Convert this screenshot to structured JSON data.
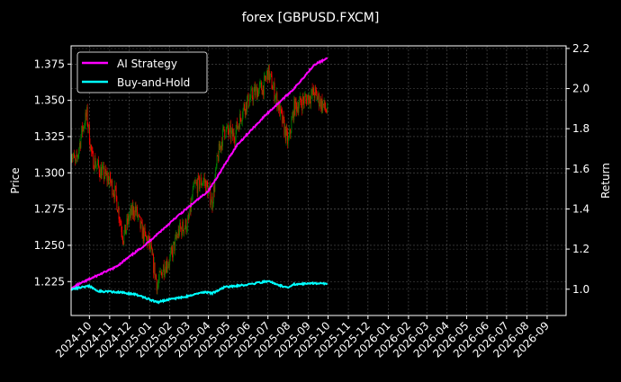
{
  "chart_data": {
    "type": "line",
    "title": "forex [GBPUSD.FXCM]",
    "xlabel": "",
    "ylabel_left": "Price",
    "ylabel_right": "Return",
    "ylim_left": [
      1.2016,
      1.3876
    ],
    "ylim_right": [
      0.869,
      2.213
    ],
    "xlim": [
      "2024-09-03",
      "2026-09-30"
    ],
    "grid": true,
    "legend_placement": "top-left",
    "left_ticks": [
      "1.225",
      "1.250",
      "1.275",
      "1.300",
      "1.325",
      "1.350",
      "1.375"
    ],
    "right_ticks": [
      "1.0",
      "1.2",
      "1.4",
      "1.6",
      "1.8",
      "2.0",
      "2.2"
    ],
    "x_ticks": [
      "2024-10",
      "2024-11",
      "2024-12",
      "2025-01",
      "2025-02",
      "2025-03",
      "2025-04",
      "2025-05",
      "2025-06",
      "2025-07",
      "2025-08",
      "2025-09",
      "2025-10",
      "2025-11",
      "2025-12",
      "2026-01",
      "2026-02",
      "2026-03",
      "2026-04",
      "2026-05",
      "2026-06",
      "2026-07",
      "2026-08",
      "2026-09"
    ],
    "price_series": {
      "name": "GBPUSD close (candles)",
      "up_color": "#008000",
      "down_color": "#ff0000",
      "points": [
        [
          "2024-09-03",
          1.315
        ],
        [
          "2024-09-10",
          1.305
        ],
        [
          "2024-09-20",
          1.33
        ],
        [
          "2024-09-27",
          1.34
        ],
        [
          "2024-10-05",
          1.31
        ],
        [
          "2024-10-20",
          1.3
        ],
        [
          "2024-11-01",
          1.295
        ],
        [
          "2024-11-10",
          1.285
        ],
        [
          "2024-11-22",
          1.255
        ],
        [
          "2024-12-01",
          1.27
        ],
        [
          "2024-12-10",
          1.275
        ],
        [
          "2024-12-20",
          1.26
        ],
        [
          "2025-01-01",
          1.25
        ],
        [
          "2025-01-13",
          1.222
        ],
        [
          "2025-01-22",
          1.235
        ],
        [
          "2025-02-01",
          1.24
        ],
        [
          "2025-02-15",
          1.26
        ],
        [
          "2025-03-01",
          1.265
        ],
        [
          "2025-03-10",
          1.29
        ],
        [
          "2025-03-25",
          1.295
        ],
        [
          "2025-04-07",
          1.28
        ],
        [
          "2025-04-15",
          1.31
        ],
        [
          "2025-04-25",
          1.33
        ],
        [
          "2025-05-10",
          1.325
        ],
        [
          "2025-05-25",
          1.345
        ],
        [
          "2025-06-10",
          1.355
        ],
        [
          "2025-06-25",
          1.36
        ],
        [
          "2025-07-01",
          1.37
        ],
        [
          "2025-07-15",
          1.35
        ],
        [
          "2025-08-01",
          1.32
        ],
        [
          "2025-08-10",
          1.345
        ],
        [
          "2025-08-25",
          1.35
        ],
        [
          "2025-09-10",
          1.355
        ],
        [
          "2025-09-30",
          1.342
        ]
      ]
    },
    "series": [
      {
        "name": "AI Strategy",
        "color": "#ff00ff",
        "axis": "right",
        "points": [
          [
            "2024-09-03",
            1.0
          ],
          [
            "2024-09-10",
            1.017
          ],
          [
            "2024-10-01",
            1.05
          ],
          [
            "2024-11-10",
            1.11
          ],
          [
            "2024-12-25",
            1.22
          ],
          [
            "2025-02-15",
            1.37
          ],
          [
            "2025-04-01",
            1.49
          ],
          [
            "2025-05-15",
            1.72
          ],
          [
            "2025-06-28",
            1.87
          ],
          [
            "2025-08-10",
            2.0
          ],
          [
            "2025-09-10",
            2.12
          ],
          [
            "2025-09-30",
            2.15
          ]
        ]
      },
      {
        "name": "Buy-and-Hold",
        "color": "#00ffff",
        "axis": "right",
        "points": [
          [
            "2024-09-03",
            1.0
          ],
          [
            "2024-09-20",
            1.01
          ],
          [
            "2024-10-01",
            1.015
          ],
          [
            "2024-10-15",
            0.99
          ],
          [
            "2024-11-15",
            0.985
          ],
          [
            "2024-12-10",
            0.975
          ],
          [
            "2025-01-13",
            0.935
          ],
          [
            "2025-02-01",
            0.95
          ],
          [
            "2025-03-01",
            0.965
          ],
          [
            "2025-03-25",
            0.985
          ],
          [
            "2025-04-07",
            0.98
          ],
          [
            "2025-04-25",
            1.01
          ],
          [
            "2025-05-25",
            1.02
          ],
          [
            "2025-07-01",
            1.04
          ],
          [
            "2025-07-15",
            1.025
          ],
          [
            "2025-08-01",
            1.005
          ],
          [
            "2025-08-10",
            1.025
          ],
          [
            "2025-09-10",
            1.03
          ],
          [
            "2025-09-30",
            1.028
          ]
        ]
      }
    ]
  }
}
